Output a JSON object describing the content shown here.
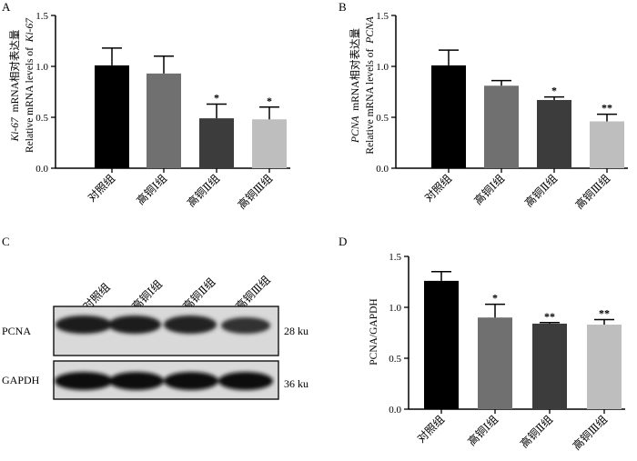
{
  "figure_title": "",
  "chart_data": [
    {
      "panel": "A",
      "type": "bar",
      "categories": [
        "对照组",
        "高铜Ⅰ组",
        "高铜Ⅱ组",
        "高铜Ⅲ组"
      ],
      "values": [
        1.01,
        0.93,
        0.49,
        0.48
      ],
      "errors": [
        0.17,
        0.17,
        0.14,
        0.12
      ],
      "significance": [
        "",
        "",
        "*",
        "*"
      ],
      "colors": [
        "#000000",
        "#707070",
        "#3c3c3c",
        "#bebebe"
      ],
      "ylabel_zh": "mRNA相对表达量",
      "ylabel_gene": "Ki-67",
      "ylabel_en_prefix": "Relative mRNA levels of",
      "ylim": [
        0,
        1.5
      ],
      "yticks": [
        "0.0",
        "0.5",
        "1.0",
        "1.5"
      ],
      "ytick_values": [
        0,
        0.5,
        1.0,
        1.5
      ]
    },
    {
      "panel": "B",
      "type": "bar",
      "categories": [
        "对照组",
        "高铜Ⅰ组",
        "高铜Ⅱ组",
        "高铜Ⅲ组"
      ],
      "values": [
        1.01,
        0.81,
        0.67,
        0.46
      ],
      "errors": [
        0.15,
        0.05,
        0.03,
        0.07
      ],
      "significance": [
        "",
        "",
        "*",
        "**"
      ],
      "colors": [
        "#000000",
        "#707070",
        "#3c3c3c",
        "#bebebe"
      ],
      "ylabel_zh": "mRNA相对表达量",
      "ylabel_gene": "PCNA",
      "ylabel_en_prefix": "Relative mRNA levels of",
      "ylim": [
        0,
        1.5
      ],
      "yticks": [
        "0.0",
        "0.5",
        "1.0",
        "1.5"
      ],
      "ytick_values": [
        0,
        0.5,
        1.0,
        1.5
      ]
    },
    {
      "panel": "D",
      "type": "bar",
      "categories": [
        "对照组",
        "高铜Ⅰ组",
        "高铜Ⅱ组",
        "高铜Ⅲ组"
      ],
      "values": [
        1.26,
        0.9,
        0.84,
        0.83
      ],
      "errors": [
        0.09,
        0.13,
        0.01,
        0.05
      ],
      "significance": [
        "",
        "*",
        "**",
        "**"
      ],
      "colors": [
        "#000000",
        "#707070",
        "#3c3c3c",
        "#bebebe"
      ],
      "ylabel": "PCNA/GAPDH",
      "ylim": [
        0,
        1.5
      ],
      "yticks": [
        "0.0",
        "0.5",
        "1.0",
        "1.5"
      ],
      "ytick_values": [
        0,
        0.5,
        1.0,
        1.5
      ]
    }
  ],
  "western_blot": {
    "panel": "C",
    "lanes": [
      "对照组",
      "高铜Ⅰ组",
      "高铜Ⅱ组",
      "高铜Ⅲ组"
    ],
    "rows": [
      {
        "protein": "PCNA",
        "size": "28 ku"
      },
      {
        "protein": "GAPDH",
        "size": "36 ku"
      }
    ]
  }
}
